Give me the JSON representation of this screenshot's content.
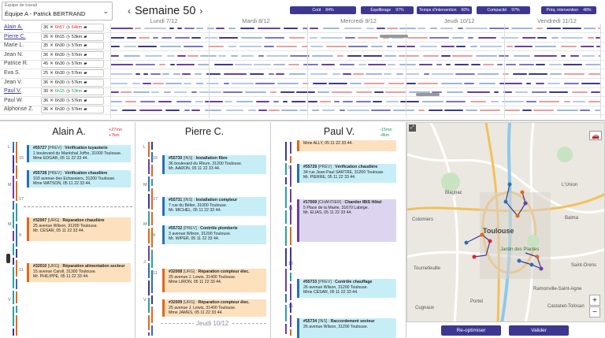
{
  "team_selector": {
    "label": "Équipe de travail",
    "value": "Équipe A - Patrick BERTRAND"
  },
  "week": {
    "prev": "‹",
    "title": "Semaine 50",
    "next": "›"
  },
  "kpis": [
    {
      "label": "Coût",
      "value": "84%"
    },
    {
      "label": "Équilibrage",
      "value": "97%"
    },
    {
      "label": "Temps d'intervention",
      "value": "60%"
    },
    {
      "label": "Compacité",
      "value": "97%"
    },
    {
      "label": "Préq. intervention",
      "value": "48%"
    }
  ],
  "days": [
    "Lundi 7/12",
    "Mardi 8/12",
    "Mercredi 9/12",
    "Jeudi 10/12",
    "Vendredi 11/12"
  ],
  "technicians": [
    {
      "name": "Alain A.",
      "count": "36",
      "time": "6h57",
      "km": "64km",
      "time_color": "red",
      "selected": true
    },
    {
      "name": "Pierre C.",
      "count": "26",
      "time": "6h15",
      "km": "53km",
      "time_color": "",
      "selected": true
    },
    {
      "name": "Marie L.",
      "count": "35",
      "time": "6h30",
      "km": "57km",
      "time_color": "",
      "selected": false
    },
    {
      "name": "Jean N.",
      "count": "36",
      "time": "6h30",
      "km": "57km",
      "time_color": "",
      "selected": false
    },
    {
      "name": "Patrice R.",
      "count": "45",
      "time": "6h30",
      "km": "57km",
      "time_color": "",
      "selected": false
    },
    {
      "name": "Eva S.",
      "count": "25",
      "time": "6h30",
      "km": "57km",
      "time_color": "",
      "selected": false
    },
    {
      "name": "Jean V.",
      "count": "36",
      "time": "6h30",
      "km": "57km",
      "time_color": "",
      "selected": false
    },
    {
      "name": "Paul V.",
      "count": "30",
      "time": "6h15",
      "km": "53km",
      "time_color": "green",
      "selected": true
    },
    {
      "name": "Paul W.",
      "count": "36",
      "time": "6h30",
      "km": "57km",
      "time_color": "",
      "selected": false
    },
    {
      "name": "Alphonse Z.",
      "count": "36",
      "time": "6h30",
      "km": "57km",
      "time_color": "",
      "selected": false
    }
  ],
  "columns": [
    {
      "name": "Alain A.",
      "delta1": "+27mn",
      "delta2": "+7km",
      "delta_color": "#d23",
      "cards": [
        {
          "color": "blue",
          "id": "#55727",
          "code": "[PREV]",
          "title": "Vérification tuyauterie",
          "addr": "1 boulevard du Maréchal Joffre, 31000 Toulouse.",
          "contact": "Mme EDGAR, 05 11 22 33 44."
        },
        {
          "color": "blue",
          "id": "#55728",
          "code": "[PREV]",
          "title": "Vérification chaudière",
          "addr": "103 avenue des Echassiers, 31200 Toulouse.",
          "contact": "Mme WATSON, 05 11 22 33 44."
        },
        {
          "color": "orange",
          "id": "#32007",
          "code": "[URG]",
          "title": "Réparation chaudière",
          "addr": "25 avenue Wilson, 31200 Toulouse.",
          "contact": "Mr. CESAR, 05 11 22 33 44."
        },
        {
          "color": "orange",
          "id": "#32010",
          "code": "[URG]",
          "title": "Réparation alimentation secteur",
          "addr": "15 avenue Caroll, 31300 Toulouse.",
          "contact": "Mr. PHILIPPE, 05 11 22 33 44."
        }
      ]
    },
    {
      "name": "Pierre C.",
      "delta1": "",
      "delta2": "",
      "delta_color": "#222",
      "cards": [
        {
          "color": "blue",
          "id": "#55730",
          "code": "[INS]",
          "title": "Installation fibre",
          "addr": "36 boulevard du Rhum, 31200 Toulouse.",
          "contact": "Mr. AARON, 05 11 22 33 44."
        },
        {
          "color": "blue",
          "id": "#55731",
          "code": "[INS]",
          "title": "Installation compteur",
          "addr": "7 rue du Bélier, 31000 Toulouse.",
          "contact": "Mr. MICHEL, 05 11 22 33 44."
        },
        {
          "color": "blue",
          "id": "#55732",
          "code": "[PREV]",
          "title": "Contrôle plomberie",
          "addr": "3 avenue Wilson, 31200 Toulouse.",
          "contact": "Mr. WIPER, 05 11 22 33 44."
        },
        {
          "color": "orange",
          "id": "#32008",
          "code": "[URG]",
          "title": "Réparation compteur élec.",
          "addr": "25 avenue J. Lewis, 31400 Toulouse.",
          "contact": "Mme LIRON, 05 11 22 33 44."
        },
        {
          "color": "orange",
          "id": "#32009",
          "code": "[URG]",
          "title": "Réparation compteur élec.",
          "addr": "25 avenue J. Lewis, 31400 Toulouse.",
          "contact": "Mme JAMES, 05 11 22 33 44."
        }
      ],
      "day_label": "Jeudi 10/12"
    },
    {
      "name": "Paul V.",
      "delta1": "-15mn",
      "delta2": "-4km",
      "delta_color": "#1a9d57",
      "cards": [
        {
          "color": "orange",
          "id": "",
          "code": "",
          "title": "",
          "addr": "",
          "contact": "Mme ALLY, 05 11 22 33 44."
        },
        {
          "color": "blue",
          "id": "#55729",
          "code": "[PREV]",
          "title": "Vérification chaudière",
          "addr": "34 rue Jean-Paul SARTRE, 31200 Toulouse.",
          "contact": "Mr. PIERRE, 05 11 22 33 44."
        },
        {
          "color": "purple",
          "id": "#17009",
          "code": "[CHANTIER]",
          "title": "Chantier IBIS Hôtel",
          "addr": "5 Place de la Mairie, 31670 Labège.",
          "contact": "Mr. ELIAS, 05 11 22 33 44."
        },
        {
          "color": "blue",
          "id": "#55733",
          "code": "[PREV]",
          "title": "Contrôle chauffage",
          "addr": "26 avenue Wilson, 31200 Toulouse.",
          "contact": "Mme CÉSAR, 05 11 22 33 44."
        },
        {
          "color": "blue",
          "id": "#55734",
          "code": "[INS]",
          "title": "Raccordement secteur",
          "addr": "26 avenue Wilson, 31200 Toulouse.",
          "contact": ""
        }
      ]
    }
  ],
  "axis_labels": {
    "days_left": [
      "L",
      "M",
      "M",
      "J",
      "V"
    ],
    "hours": [
      "15",
      "17",
      "9",
      "11",
      "13",
      "15"
    ]
  },
  "map": {
    "labels": [
      "Toulouse",
      "Blagnac",
      "Jardin des Plantes",
      "Colomiers",
      "Tournefeuille",
      "Balma",
      "L'Union",
      "Castanet-Tolosan",
      "Ramonville-Saint-Agne",
      "Saint-Orens",
      "Cugnaux",
      "Portet"
    ],
    "zoom_in": "+",
    "zoom_out": "−"
  },
  "buttons": {
    "reoptimize": "Re-optimiser",
    "validate": "Valider"
  },
  "colors": {
    "accent": "#3d3791",
    "red": "#d23",
    "green": "#1a9d57"
  }
}
